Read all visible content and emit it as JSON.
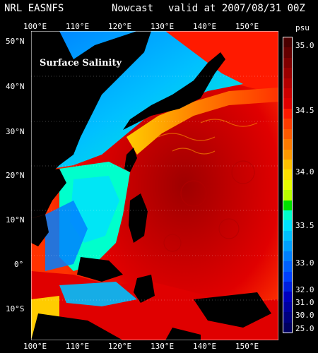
{
  "header": {
    "source": "NRL EASNFS",
    "product": "Nowcast",
    "valid": "valid at 2007/08/31 00Z"
  },
  "map_label": "Surface Salinity",
  "lon_labels_top": [
    "100°E",
    "110°E",
    "120°E",
    "130°E",
    "140°E",
    "150°E"
  ],
  "lon_labels_bottom": [
    "100°E",
    "110°E",
    "120°E",
    "130°E",
    "140°E",
    "150°E"
  ],
  "lat_labels": [
    "50°N",
    "40°N",
    "30°N",
    "20°N",
    "10°N",
    "0°",
    "10°S"
  ],
  "colorbar": {
    "unit": "psu",
    "tick_labels": [
      "35.0",
      "34.5",
      "34.0",
      "33.5",
      "33.0",
      "32.0",
      "31.0",
      "30.0",
      "25.0"
    ],
    "colors": [
      "#4a0000",
      "#650000",
      "#800000",
      "#9a0000",
      "#b30000",
      "#cc0000",
      "#e00000",
      "#ff1a00",
      "#ff3c00",
      "#ff5a00",
      "#ff7a00",
      "#ff9900",
      "#ffc000",
      "#ffe000",
      "#e8ff00",
      "#b8ff00",
      "#00e000",
      "#00ffcc",
      "#00e0ff",
      "#00c0ff",
      "#00a0ff",
      "#0080ff",
      "#0060ff",
      "#0040ff",
      "#0020e0",
      "#0000c0",
      "#0000a0",
      "#000080",
      "#000060"
    ]
  }
}
